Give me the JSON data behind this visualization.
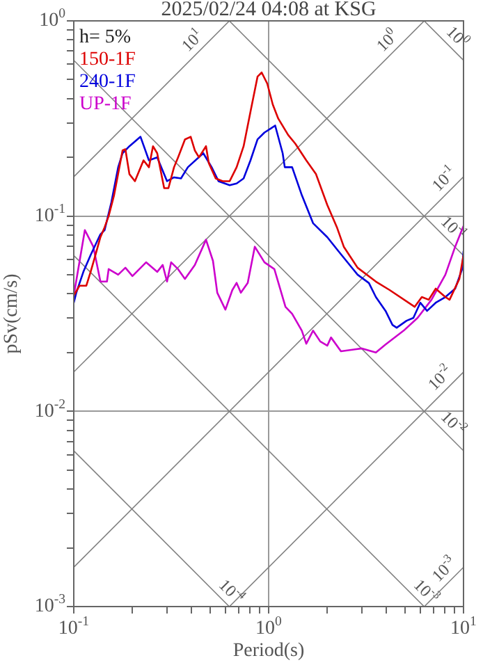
{
  "chart_data": {
    "type": "line",
    "title": "2025/02/24 04:08 at KSG",
    "xlabel": "Period(s)",
    "ylabel": "pSv(cm/s)",
    "log": "xy",
    "grid": true,
    "legend": "top left",
    "xlim": [
      0.1,
      10
    ],
    "ylim": [
      0.001,
      1
    ],
    "xticks": [
      {
        "value": 0.1,
        "label": "10$^{-1}$"
      },
      {
        "value": 0.2,
        "label": null
      },
      {
        "value": 0.3,
        "label": null
      },
      {
        "value": 0.4,
        "label": null
      },
      {
        "value": 0.5,
        "label": null
      },
      {
        "value": 0.6,
        "label": null
      },
      {
        "value": 0.7,
        "label": null
      },
      {
        "value": 0.8,
        "label": null
      },
      {
        "value": 0.9,
        "label": null
      },
      {
        "value": 1,
        "label": "10$^{0}$"
      },
      {
        "value": 2,
        "label": null
      },
      {
        "value": 3,
        "label": null
      },
      {
        "value": 4,
        "label": null
      },
      {
        "value": 5,
        "label": null
      },
      {
        "value": 6,
        "label": null
      },
      {
        "value": 7,
        "label": null
      },
      {
        "value": 8,
        "label": null
      },
      {
        "value": 9,
        "label": null
      },
      {
        "value": 10,
        "label": "10$^{1}$"
      }
    ],
    "yticks": [
      {
        "value": 0.001,
        "label": "10$^{-3}$"
      },
      {
        "value": 0.002,
        "label": null
      },
      {
        "value": 0.003,
        "label": null
      },
      {
        "value": 0.004,
        "label": null
      },
      {
        "value": 0.005,
        "label": null
      },
      {
        "value": 0.006,
        "label": null
      },
      {
        "value": 0.007,
        "label": null
      },
      {
        "value": 0.008,
        "label": null
      },
      {
        "value": 0.009,
        "label": null
      },
      {
        "value": 0.01,
        "label": "10$^{-2}$"
      },
      {
        "value": 0.02,
        "label": null
      },
      {
        "value": 0.03,
        "label": null
      },
      {
        "value": 0.04,
        "label": null
      },
      {
        "value": 0.05,
        "label": null
      },
      {
        "value": 0.06,
        "label": null
      },
      {
        "value": 0.07,
        "label": null
      },
      {
        "value": 0.08,
        "label": null
      },
      {
        "value": 0.09,
        "label": null
      },
      {
        "value": 0.1,
        "label": "10$^{-1}$"
      },
      {
        "value": 0.2,
        "label": null
      },
      {
        "value": 0.3,
        "label": null
      },
      {
        "value": 0.4,
        "label": null
      },
      {
        "value": 0.5,
        "label": null
      },
      {
        "value": 0.6,
        "label": null
      },
      {
        "value": 0.7,
        "label": null
      },
      {
        "value": 0.8,
        "label": null
      },
      {
        "value": 0.9,
        "label": null
      },
      {
        "value": 1,
        "label": "10$^{0}$"
      }
    ],
    "annotations": [
      "h= 5%",
      {
        "text": "10$^{1}$",
        "x": 0.45,
        "y": 0.716
      },
      {
        "text": "10$^{0}$",
        "x": 4.5,
        "y": 0.716
      },
      {
        "text": "10$^{-1}$",
        "x": 8.8,
        "y": 0.14
      },
      {
        "text": "10$^{-2}$",
        "x": 8.4,
        "y": 0.0134
      },
      {
        "text": "10$^{-3}$",
        "x": 8.8,
        "y": 0.0014
      },
      {
        "text": "10$^{0}$",
        "x": 8.4,
        "y": 0.748
      },
      {
        "text": "10$^{-1}$",
        "x": 8.0,
        "y": 0.0785
      },
      {
        "text": "10$^{-2}$",
        "x": 8.0,
        "y": 0.00785
      },
      {
        "text": "10$^{-3}$",
        "x": 5.8,
        "y": 0.00108
      },
      {
        "text": "10$^{-4}$",
        "x": 0.58,
        "y": 0.00108
      }
    ],
    "series": [
      {
        "name": "150-1F",
        "color": "#dd0000",
        "x": [
          0.1,
          0.107,
          0.116,
          0.122,
          0.128,
          0.137,
          0.144,
          0.151,
          0.161,
          0.178,
          0.184,
          0.193,
          0.206,
          0.228,
          0.243,
          0.255,
          0.268,
          0.291,
          0.306,
          0.327,
          0.343,
          0.372,
          0.398,
          0.418,
          0.439,
          0.477,
          0.493,
          0.535,
          0.581,
          0.631,
          0.685,
          0.744,
          0.807,
          0.877,
          0.921,
          0.984,
          1.05,
          1.12,
          1.26,
          1.37,
          1.56,
          1.75,
          2.0,
          2.24,
          2.43,
          2.86,
          3.55,
          4.18,
          5.62,
          6.11,
          6.63,
          7.2,
          8.07,
          8.48,
          9.52,
          10
        ],
        "values": [
          0.0392,
          0.044,
          0.044,
          0.0518,
          0.0611,
          0.078,
          0.0877,
          0.1,
          0.128,
          0.217,
          0.22,
          0.164,
          0.151,
          0.193,
          0.178,
          0.228,
          0.21,
          0.139,
          0.139,
          0.178,
          0.2,
          0.247,
          0.255,
          0.217,
          0.2,
          0.228,
          0.187,
          0.156,
          0.151,
          0.151,
          0.178,
          0.228,
          0.343,
          0.518,
          0.544,
          0.477,
          0.373,
          0.316,
          0.26,
          0.235,
          0.193,
          0.164,
          0.114,
          0.0877,
          0.0697,
          0.0544,
          0.0462,
          0.0418,
          0.0343,
          0.0385,
          0.0373,
          0.0425,
          0.0385,
          0.0373,
          0.0477,
          0.0631
        ]
      },
      {
        "name": "240-1F",
        "color": "#0000dd",
        "x": [
          0.1,
          0.103,
          0.112,
          0.122,
          0.137,
          0.144,
          0.156,
          0.169,
          0.178,
          0.193,
          0.22,
          0.243,
          0.268,
          0.301,
          0.327,
          0.355,
          0.385,
          0.462,
          0.51,
          0.553,
          0.631,
          0.685,
          0.744,
          0.807,
          0.877,
          0.952,
          1.03,
          1.08,
          1.18,
          1.21,
          1.32,
          1.48,
          1.69,
          2.0,
          2.28,
          2.86,
          3.27,
          3.55,
          3.98,
          4.32,
          4.54,
          5.1,
          5.53,
          6.0,
          6.5,
          7.2,
          8.07,
          9.06,
          9.84,
          10
        ],
        "values": [
          0.036,
          0.0405,
          0.0518,
          0.0631,
          0.0807,
          0.0848,
          0.118,
          0.178,
          0.21,
          0.228,
          0.255,
          0.193,
          0.2,
          0.151,
          0.158,
          0.156,
          0.178,
          0.21,
          0.178,
          0.151,
          0.144,
          0.147,
          0.156,
          0.193,
          0.247,
          0.268,
          0.282,
          0.291,
          0.21,
          0.178,
          0.178,
          0.128,
          0.092,
          0.078,
          0.0662,
          0.0501,
          0.0454,
          0.0385,
          0.0327,
          0.0277,
          0.0268,
          0.0291,
          0.0301,
          0.036,
          0.0327,
          0.036,
          0.0385,
          0.0425,
          0.0535,
          0.0662
        ]
      },
      {
        "name": "UP-1F",
        "color": "#cc00cc",
        "x": [
          0.1,
          0.114,
          0.126,
          0.137,
          0.148,
          0.151,
          0.169,
          0.184,
          0.2,
          0.235,
          0.268,
          0.286,
          0.301,
          0.316,
          0.343,
          0.372,
          0.418,
          0.477,
          0.518,
          0.545,
          0.6,
          0.651,
          0.685,
          0.72,
          0.781,
          0.849,
          0.952,
          1.07,
          1.22,
          1.32,
          1.48,
          1.56,
          1.69,
          1.84,
          2.0,
          2.09,
          2.35,
          3.01,
          3.55,
          3.98,
          4.93,
          5.81,
          6.85,
          8.07,
          9.06,
          10
        ],
        "values": [
          0.0392,
          0.0848,
          0.0697,
          0.0462,
          0.0462,
          0.0535,
          0.0501,
          0.0544,
          0.0493,
          0.058,
          0.0518,
          0.0562,
          0.0462,
          0.058,
          0.0535,
          0.0477,
          0.0562,
          0.0757,
          0.059,
          0.0405,
          0.0332,
          0.0418,
          0.0455,
          0.0405,
          0.0455,
          0.0697,
          0.058,
          0.0535,
          0.0343,
          0.0316,
          0.0259,
          0.0222,
          0.0259,
          0.0228,
          0.0217,
          0.0239,
          0.0203,
          0.021,
          0.02,
          0.022,
          0.0259,
          0.0301,
          0.0373,
          0.0501,
          0.0697,
          0.0891
        ]
      },
      {
        "color": "#808080",
        "x": [
          0.1,
          0.629
        ],
        "values": [
          0.159,
          1
        ]
      },
      {
        "color": "#808080",
        "x": [
          0.1,
          6.29
        ],
        "values": [
          0.0159,
          1
        ]
      },
      {
        "color": "#808080",
        "x": [
          0.1,
          10
        ],
        "values": [
          0.00159,
          0.159
        ]
      },
      {
        "color": "#808080",
        "x": [
          0.629,
          10
        ],
        "values": [
          0.001,
          0.0159
        ]
      },
      {
        "color": "#808080",
        "x": [
          6.29,
          10
        ],
        "values": [
          0.001,
          0.00159
        ]
      },
      {
        "color": "#808080",
        "x": [
          6.28,
          10
        ],
        "values": [
          1,
          0.628
        ]
      },
      {
        "color": "#808080",
        "x": [
          0.628,
          10
        ],
        "values": [
          1,
          0.0628
        ]
      },
      {
        "color": "#808080",
        "x": [
          0.1,
          10
        ],
        "values": [
          0.628,
          0.00628
        ]
      },
      {
        "color": "#808080",
        "x": [
          0.1,
          6.28
        ],
        "values": [
          0.0628,
          0.001
        ]
      },
      {
        "color": "#808080",
        "x": [
          0.1,
          0.628
        ],
        "values": [
          0.00628,
          0.001
        ]
      }
    ]
  }
}
